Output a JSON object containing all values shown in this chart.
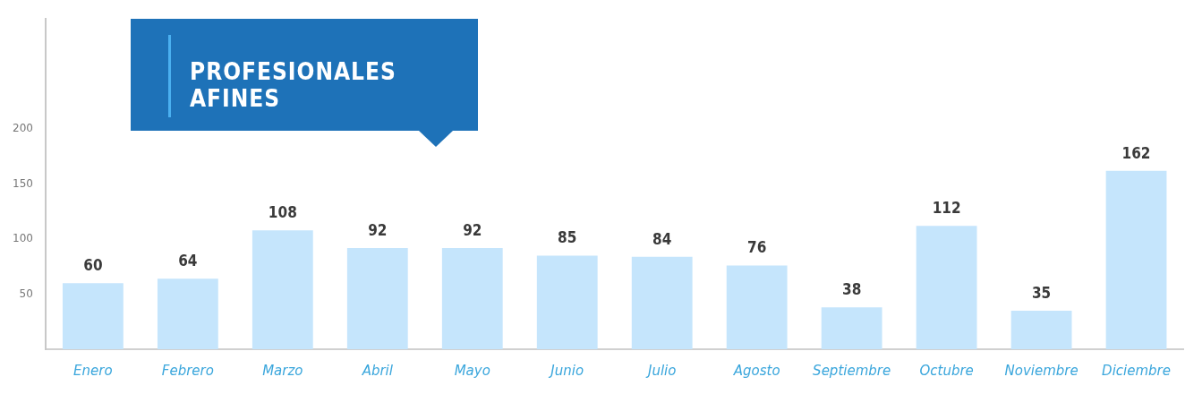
{
  "chart_data": {
    "type": "bar",
    "title": "PROFESIONALES AFINES",
    "categories": [
      "Enero",
      "Febrero",
      "Marzo",
      "Abril",
      "Mayo",
      "Junio",
      "Julio",
      "Agosto",
      "Septiembre",
      "Octubre",
      "Noviembre",
      "Diciembre"
    ],
    "values": [
      60,
      64,
      108,
      92,
      92,
      85,
      84,
      76,
      38,
      112,
      35,
      162
    ],
    "color": "#c5e5fc",
    "ylim": [
      0,
      300
    ],
    "yticks": [
      50,
      100,
      150,
      200
    ],
    "grid": false,
    "legend": false,
    "data_labels": true
  }
}
